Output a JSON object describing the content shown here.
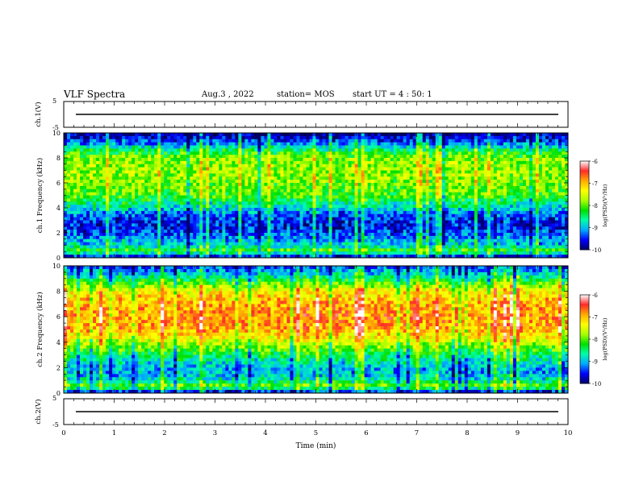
{
  "header": {
    "title": "VLF Spectra",
    "date": "Aug.3 , 2022",
    "station": "station= MOS",
    "start": "start UT = 4 : 50: 1"
  },
  "colors": {
    "colormap": [
      "#000066",
      "#0000ff",
      "#00aaff",
      "#00ffaa",
      "#00e000",
      "#aaff00",
      "#ffff00",
      "#ffaa00",
      "#ff2a2a",
      "#ffffff"
    ]
  },
  "chart_data": [
    {
      "type": "line",
      "panel": "ch1-waveform",
      "ylabel": "ch.1(V)",
      "ylim": [
        -5,
        5
      ],
      "yticks": [
        "5",
        "-5"
      ],
      "x": [
        0,
        10
      ],
      "y": [
        0,
        0
      ]
    },
    {
      "type": "heatmap",
      "panel": "ch1-spectrogram",
      "ylabel": "ch.1 Frequency (kHz)",
      "ylim": [
        0,
        10
      ],
      "yticks": [
        "0",
        "2",
        "4",
        "6",
        "8",
        "10"
      ],
      "colorbar": {
        "label": "log(PSD)(V²/Hz)",
        "range": [
          -10,
          -6
        ],
        "ticks": [
          "-6",
          "-7",
          "-8",
          "-9",
          "-10"
        ]
      },
      "profile_freq_khz": [
        0,
        0.3,
        0.6,
        1,
        1.5,
        2,
        2.5,
        3,
        3.5,
        4,
        4.5,
        5,
        6,
        7,
        8,
        8.5,
        9,
        9.5,
        10
      ],
      "profile_log_psd": [
        -10,
        -8.8,
        -8.2,
        -8.9,
        -9.1,
        -9.4,
        -9.6,
        -9.5,
        -9.3,
        -8.8,
        -8.5,
        -8.1,
        -7.9,
        -7.8,
        -7.9,
        -8.3,
        -9.0,
        -9.6,
        -9.9
      ]
    },
    {
      "type": "heatmap",
      "panel": "ch2-spectrogram",
      "ylabel": "ch.2 Frequency (kHz)",
      "ylim": [
        0,
        10
      ],
      "yticks": [
        "0",
        "2",
        "4",
        "6",
        "8",
        "10"
      ],
      "colorbar": {
        "label": "log(PSD)(V²/Hz)",
        "range": [
          -10,
          -6
        ],
        "ticks": [
          "-6",
          "-7",
          "-8",
          "-9",
          "-10"
        ]
      },
      "profile_freq_khz": [
        0,
        0.3,
        0.6,
        1,
        1.5,
        2,
        2.5,
        3,
        3.5,
        4,
        4.5,
        5,
        6,
        7,
        8,
        8.5,
        9,
        9.5,
        10
      ],
      "profile_log_psd": [
        -10,
        -8.6,
        -8.0,
        -8.7,
        -9.0,
        -9.0,
        -8.7,
        -8.4,
        -8.0,
        -7.6,
        -7.2,
        -6.9,
        -6.8,
        -6.9,
        -7.3,
        -7.9,
        -8.5,
        -9.0,
        -9.4
      ]
    },
    {
      "type": "line",
      "panel": "ch2-waveform",
      "ylabel": "ch.2(V)",
      "ylim": [
        -5,
        5
      ],
      "yticks": [
        "5",
        "-5"
      ],
      "x": [
        0,
        10
      ],
      "y": [
        0,
        0
      ]
    }
  ],
  "xaxis": {
    "label": "Time (min)",
    "range": [
      0,
      10
    ],
    "ticks": [
      "0",
      "1",
      "2",
      "3",
      "4",
      "5",
      "6",
      "7",
      "8",
      "9",
      "10"
    ]
  }
}
